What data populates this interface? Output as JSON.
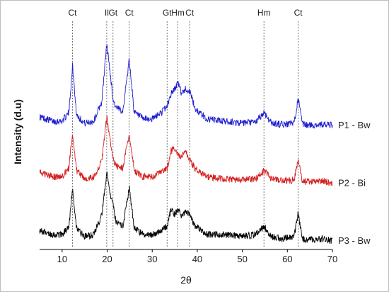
{
  "chart_data": {
    "type": "line",
    "title": "",
    "xlabel": "2θ",
    "ylabel": "Intensity (d.u)",
    "xlim": [
      5,
      70
    ],
    "xticks": [
      10,
      20,
      30,
      40,
      50,
      60,
      70
    ],
    "grid": false,
    "peak_markers": [
      {
        "label": "Ct",
        "x": 12.3
      },
      {
        "label": "Il",
        "x": 19.9
      },
      {
        "label": "Gt",
        "x": 21.3
      },
      {
        "label": "Ct",
        "x": 24.9
      },
      {
        "label": "Gt",
        "x": 33.3
      },
      {
        "label": "Hm",
        "x": 35.7
      },
      {
        "label": "Ct",
        "x": 38.3
      },
      {
        "label": "Hm",
        "x": 54.8
      },
      {
        "label": "Ct",
        "x": 62.4
      }
    ],
    "series": [
      {
        "name": "P1 - Bw",
        "color": "#1f1fd0",
        "x": [
          5,
          8,
          10,
          11.5,
          12.3,
          13.2,
          15,
          17,
          18.8,
          19.9,
          20.6,
          21.3,
          22,
          23.5,
          24.9,
          26,
          28,
          30,
          32,
          33.3,
          34.2,
          35,
          35.7,
          36.5,
          37.3,
          38.3,
          39.5,
          42,
          46,
          50,
          53,
          54.8,
          56.5,
          59,
          61.5,
          62.4,
          63.3,
          65,
          68,
          70
        ],
        "y": [
          6.2,
          6.0,
          6.0,
          6.4,
          8.6,
          6.3,
          5.9,
          6.0,
          6.9,
          9.6,
          8.4,
          7.0,
          6.6,
          6.5,
          8.9,
          6.4,
          6.1,
          6.1,
          6.4,
          6.7,
          7.3,
          7.5,
          7.8,
          7.3,
          7.5,
          7.4,
          6.6,
          6.1,
          6.0,
          5.9,
          5.95,
          6.4,
          5.9,
          5.85,
          5.9,
          7.1,
          5.85,
          5.8,
          5.85,
          5.8
        ]
      },
      {
        "name": "P2 - Bi",
        "color": "#d42020",
        "x": [
          5,
          8,
          10,
          11.5,
          12.3,
          13.2,
          15,
          17,
          18.8,
          19.9,
          20.6,
          21.3,
          22,
          23.5,
          24.9,
          26,
          28,
          30,
          32,
          33.3,
          34.2,
          35,
          35.7,
          36.5,
          37.3,
          38.3,
          39.5,
          42,
          46,
          50,
          53,
          54.8,
          56.5,
          59,
          61.5,
          62.4,
          63.3,
          65,
          68,
          70
        ],
        "y": [
          3.6,
          3.4,
          3.4,
          3.8,
          5.5,
          3.7,
          3.3,
          3.4,
          4.1,
          6.2,
          5.2,
          4.2,
          3.9,
          3.8,
          5.4,
          3.7,
          3.4,
          3.4,
          3.6,
          3.8,
          4.6,
          4.7,
          4.4,
          4.3,
          4.6,
          4.2,
          3.8,
          3.4,
          3.3,
          3.25,
          3.3,
          3.7,
          3.3,
          3.2,
          3.25,
          4.2,
          3.2,
          3.15,
          3.2,
          3.1
        ]
      },
      {
        "name": "P3 - Bw",
        "color": "#000000",
        "x": [
          5,
          8,
          10,
          11.5,
          12.3,
          13.2,
          15,
          17,
          18.8,
          19.9,
          20.6,
          21.3,
          22,
          23.5,
          24.9,
          26,
          28,
          30,
          32,
          33.3,
          34.2,
          35,
          35.7,
          36.5,
          37.3,
          38.3,
          39.5,
          42,
          46,
          50,
          53,
          54.8,
          56.5,
          59,
          61.5,
          62.4,
          63.3,
          65,
          68,
          70
        ],
        "y": [
          0.9,
          0.7,
          0.7,
          1.1,
          2.8,
          1.0,
          0.6,
          0.7,
          1.6,
          3.6,
          2.6,
          2.1,
          1.2,
          1.1,
          2.9,
          1.0,
          0.7,
          0.7,
          0.9,
          1.1,
          1.9,
          1.6,
          1.9,
          1.5,
          1.8,
          1.6,
          1.1,
          0.7,
          0.7,
          0.6,
          0.7,
          1.1,
          0.6,
          0.5,
          0.6,
          1.7,
          0.5,
          0.45,
          0.5,
          0.4
        ]
      }
    ]
  }
}
